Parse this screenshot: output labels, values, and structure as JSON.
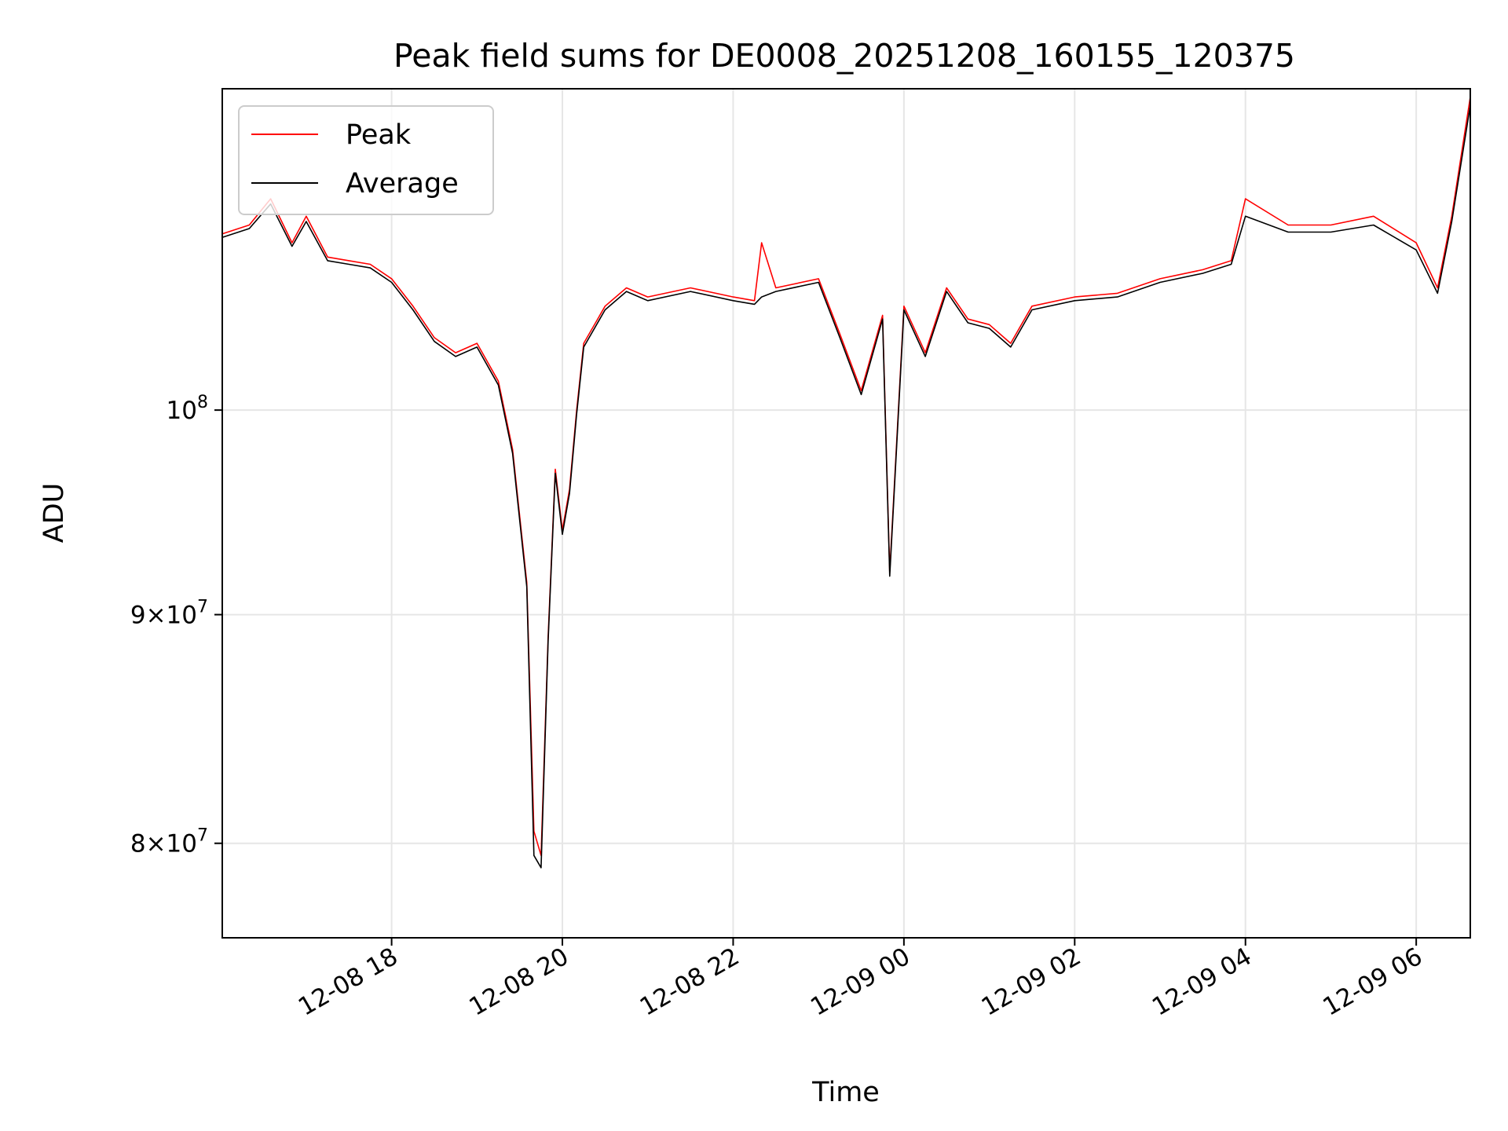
{
  "chart_data": {
    "type": "line",
    "title": "Peak field sums for DE0008_20251208_160155_120375",
    "xlabel": "Time",
    "ylabel": "ADU",
    "y_scale": "log",
    "grid": true,
    "legend_position": "top-left",
    "xlim": [
      "2025-12-08 16:01",
      "2025-12-09 06:38"
    ],
    "ylim": [
      76200000,
      118000000
    ],
    "x_ticks": [
      "2025-12-08 18:00",
      "2025-12-08 20:00",
      "2025-12-08 22:00",
      "2025-12-09 00:00",
      "2025-12-09 02:00",
      "2025-12-09 04:00",
      "2025-12-09 06:00"
    ],
    "x_tick_labels": [
      "12-08 18",
      "12-08 20",
      "12-08 22",
      "12-09 00",
      "12-09 02",
      "12-09 04",
      "12-09 06"
    ],
    "y_ticks": [
      {
        "value": 80000000,
        "label_mantissa": "8",
        "label_base": "10",
        "label_exp": "7"
      },
      {
        "value": 90000000,
        "label_mantissa": "9",
        "label_base": "10",
        "label_exp": "7"
      },
      {
        "value": 100000000,
        "label_mantissa": "",
        "label_base": "10",
        "label_exp": "8"
      }
    ],
    "series": [
      {
        "name": "Peak",
        "color": "#ff0000",
        "points": [
          [
            "2025-12-08 16:01",
            109500000
          ],
          [
            "2025-12-08 16:20",
            110000000
          ],
          [
            "2025-12-08 16:35",
            111500000
          ],
          [
            "2025-12-08 16:50",
            109000000
          ],
          [
            "2025-12-08 17:00",
            110500000
          ],
          [
            "2025-12-08 17:15",
            108200000
          ],
          [
            "2025-12-08 17:30",
            108000000
          ],
          [
            "2025-12-08 17:45",
            107800000
          ],
          [
            "2025-12-08 18:00",
            107000000
          ],
          [
            "2025-12-08 18:15",
            105500000
          ],
          [
            "2025-12-08 18:30",
            103800000
          ],
          [
            "2025-12-08 18:45",
            103000000
          ],
          [
            "2025-12-08 19:00",
            103500000
          ],
          [
            "2025-12-08 19:15",
            101500000
          ],
          [
            "2025-12-08 19:25",
            98000000
          ],
          [
            "2025-12-08 19:35",
            91500000
          ],
          [
            "2025-12-08 19:40",
            80500000
          ],
          [
            "2025-12-08 19:45",
            79500000
          ],
          [
            "2025-12-08 19:50",
            89000000
          ],
          [
            "2025-12-08 19:55",
            97000000
          ],
          [
            "2025-12-08 20:00",
            94000000
          ],
          [
            "2025-12-08 20:05",
            96000000
          ],
          [
            "2025-12-08 20:10",
            100000000
          ],
          [
            "2025-12-08 20:15",
            103500000
          ],
          [
            "2025-12-08 20:30",
            105500000
          ],
          [
            "2025-12-08 20:45",
            106500000
          ],
          [
            "2025-12-08 21:00",
            106000000
          ],
          [
            "2025-12-08 21:30",
            106500000
          ],
          [
            "2025-12-08 22:00",
            106000000
          ],
          [
            "2025-12-08 22:15",
            105800000
          ],
          [
            "2025-12-08 22:20",
            109000000
          ],
          [
            "2025-12-08 22:30",
            106500000
          ],
          [
            "2025-12-08 23:00",
            107000000
          ],
          [
            "2025-12-08 23:15",
            104000000
          ],
          [
            "2025-12-08 23:30",
            101000000
          ],
          [
            "2025-12-08 23:45",
            105000000
          ],
          [
            "2025-12-08 23:50",
            92000000
          ],
          [
            "2025-12-09 00:00",
            105500000
          ],
          [
            "2025-12-09 00:15",
            103000000
          ],
          [
            "2025-12-09 00:30",
            106500000
          ],
          [
            "2025-12-09 00:45",
            104800000
          ],
          [
            "2025-12-09 01:00",
            104500000
          ],
          [
            "2025-12-09 01:15",
            103500000
          ],
          [
            "2025-12-09 01:30",
            105500000
          ],
          [
            "2025-12-09 02:00",
            106000000
          ],
          [
            "2025-12-09 02:30",
            106200000
          ],
          [
            "2025-12-09 03:00",
            107000000
          ],
          [
            "2025-12-09 03:30",
            107500000
          ],
          [
            "2025-12-09 03:50",
            108000000
          ],
          [
            "2025-12-09 04:00",
            111500000
          ],
          [
            "2025-12-09 04:30",
            110000000
          ],
          [
            "2025-12-09 05:00",
            110000000
          ],
          [
            "2025-12-09 05:30",
            110500000
          ],
          [
            "2025-12-09 06:00",
            109000000
          ],
          [
            "2025-12-09 06:15",
            106500000
          ],
          [
            "2025-12-09 06:25",
            110500000
          ],
          [
            "2025-12-09 06:38",
            117500000
          ]
        ]
      },
      {
        "name": "Average",
        "color": "#000000",
        "points": [
          [
            "2025-12-08 16:01",
            109300000
          ],
          [
            "2025-12-08 16:20",
            109800000
          ],
          [
            "2025-12-08 16:35",
            111200000
          ],
          [
            "2025-12-08 16:50",
            108800000
          ],
          [
            "2025-12-08 17:00",
            110200000
          ],
          [
            "2025-12-08 17:15",
            108000000
          ],
          [
            "2025-12-08 17:30",
            107800000
          ],
          [
            "2025-12-08 17:45",
            107600000
          ],
          [
            "2025-12-08 18:00",
            106800000
          ],
          [
            "2025-12-08 18:15",
            105300000
          ],
          [
            "2025-12-08 18:30",
            103600000
          ],
          [
            "2025-12-08 18:45",
            102800000
          ],
          [
            "2025-12-08 19:00",
            103300000
          ],
          [
            "2025-12-08 19:15",
            101300000
          ],
          [
            "2025-12-08 19:25",
            97800000
          ],
          [
            "2025-12-08 19:35",
            91300000
          ],
          [
            "2025-12-08 19:40",
            79500000
          ],
          [
            "2025-12-08 19:45",
            79000000
          ],
          [
            "2025-12-08 19:50",
            88800000
          ],
          [
            "2025-12-08 19:55",
            96800000
          ],
          [
            "2025-12-08 20:00",
            93800000
          ],
          [
            "2025-12-08 20:05",
            95800000
          ],
          [
            "2025-12-08 20:10",
            99800000
          ],
          [
            "2025-12-08 20:15",
            103300000
          ],
          [
            "2025-12-08 20:30",
            105300000
          ],
          [
            "2025-12-08 20:45",
            106300000
          ],
          [
            "2025-12-08 21:00",
            105800000
          ],
          [
            "2025-12-08 21:30",
            106300000
          ],
          [
            "2025-12-08 22:00",
            105800000
          ],
          [
            "2025-12-08 22:15",
            105600000
          ],
          [
            "2025-12-08 22:20",
            106000000
          ],
          [
            "2025-12-08 22:30",
            106300000
          ],
          [
            "2025-12-08 23:00",
            106800000
          ],
          [
            "2025-12-08 23:15",
            103800000
          ],
          [
            "2025-12-08 23:30",
            100800000
          ],
          [
            "2025-12-08 23:45",
            104800000
          ],
          [
            "2025-12-08 23:50",
            91800000
          ],
          [
            "2025-12-09 00:00",
            105300000
          ],
          [
            "2025-12-09 00:15",
            102800000
          ],
          [
            "2025-12-09 00:30",
            106300000
          ],
          [
            "2025-12-09 00:45",
            104600000
          ],
          [
            "2025-12-09 01:00",
            104300000
          ],
          [
            "2025-12-09 01:15",
            103300000
          ],
          [
            "2025-12-09 01:30",
            105300000
          ],
          [
            "2025-12-09 02:00",
            105800000
          ],
          [
            "2025-12-09 02:30",
            106000000
          ],
          [
            "2025-12-09 03:00",
            106800000
          ],
          [
            "2025-12-09 03:30",
            107300000
          ],
          [
            "2025-12-09 03:50",
            107800000
          ],
          [
            "2025-12-09 04:00",
            110500000
          ],
          [
            "2025-12-09 04:30",
            109600000
          ],
          [
            "2025-12-09 05:00",
            109600000
          ],
          [
            "2025-12-09 05:30",
            110000000
          ],
          [
            "2025-12-09 06:00",
            108600000
          ],
          [
            "2025-12-09 06:15",
            106200000
          ],
          [
            "2025-12-09 06:25",
            110200000
          ],
          [
            "2025-12-09 06:38",
            117000000
          ]
        ]
      }
    ]
  }
}
